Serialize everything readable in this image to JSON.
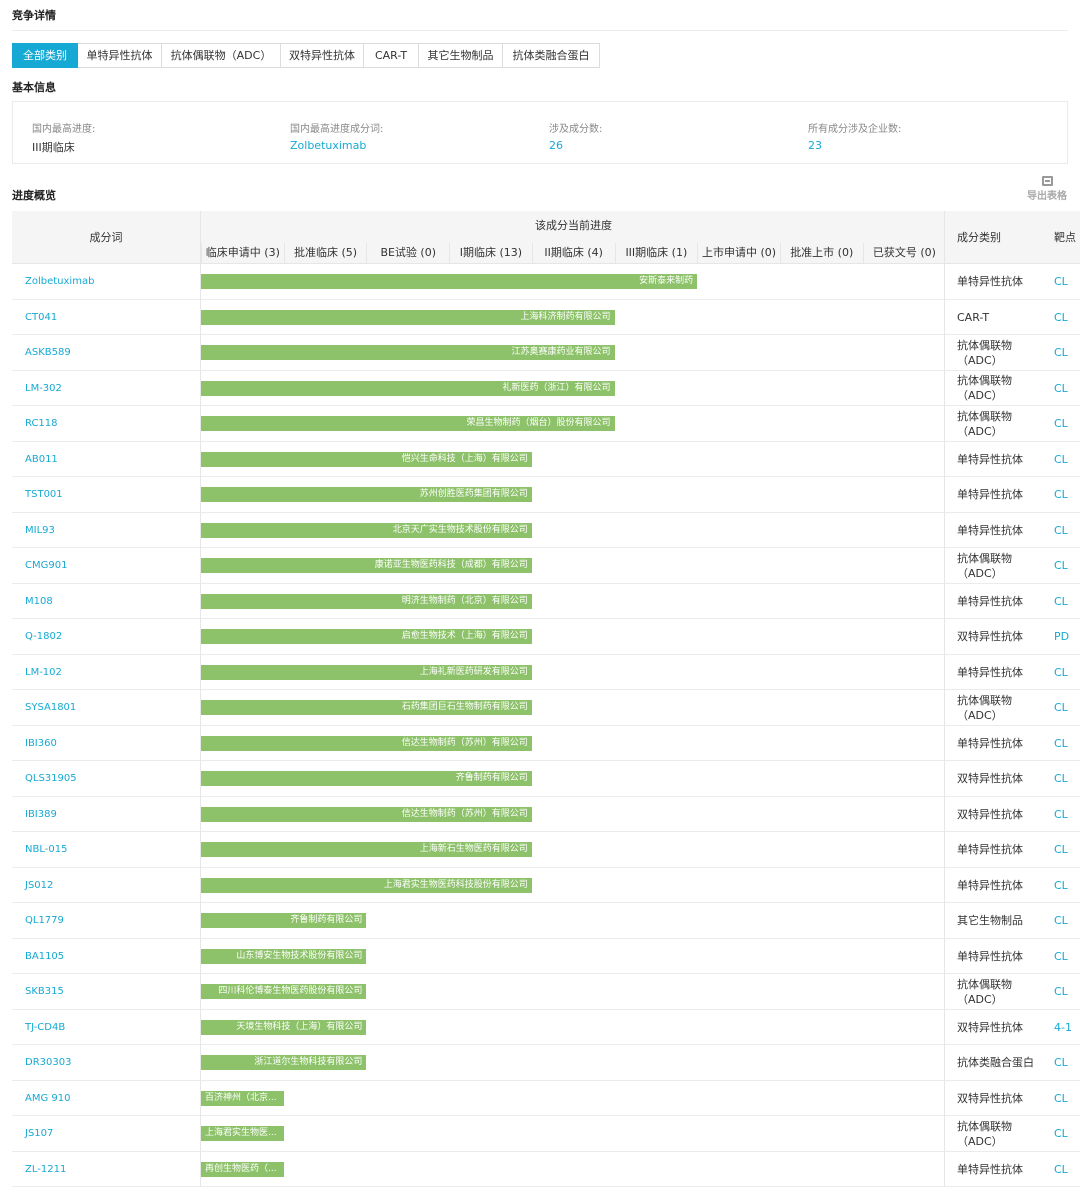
{
  "page_title": "竞争详情",
  "tabs": [
    "全部类别",
    "单特异性抗体",
    "抗体偶联物（ADC）",
    "双特异性抗体",
    "CAR-T",
    "其它生物制品",
    "抗体类融合蛋白"
  ],
  "basic_info": {
    "title": "基本信息",
    "items": [
      {
        "label": "国内最高进度:",
        "value": "III期临床"
      },
      {
        "label": "国内最高进度成分词:",
        "value": "Zolbetuximab"
      },
      {
        "label": "涉及成分数:",
        "value": "26"
      },
      {
        "label": "所有成分涉及企业数:",
        "value": "23"
      }
    ]
  },
  "progress": {
    "title": "进度概览",
    "export_label": "导出表格",
    "col_name": "成分词",
    "col_progress": "该成分当前进度",
    "col_category": "成分类别",
    "col_target": "靶点",
    "stages": [
      "临床申请中 (3)",
      "批准临床 (5)",
      "BE试验 (0)",
      "I期临床 (13)",
      "II期临床 (4)",
      "III期临床 (1)",
      "上市申请中 (0)",
      "批准上市 (0)",
      "已获文号 (0)"
    ]
  },
  "rows": [
    {
      "name": "Zolbetuximab",
      "stage": 6,
      "company": "安斯泰来制药",
      "category": "单特异性抗体",
      "target": "CL"
    },
    {
      "name": "CT041",
      "stage": 5,
      "company": "上海科济制药有限公司",
      "category": "CAR-T",
      "target": "CL"
    },
    {
      "name": "ASKB589",
      "stage": 5,
      "company": "江苏奥赛康药业有限公司",
      "category": "抗体偶联物（ADC）",
      "target": "CL"
    },
    {
      "name": "LM-302",
      "stage": 5,
      "company": "礼新医药（浙江）有限公司",
      "category": "抗体偶联物（ADC）",
      "target": "CL"
    },
    {
      "name": "RC118",
      "stage": 5,
      "company": "荣昌生物制药（烟台）股份有限公司",
      "category": "抗体偶联物（ADC）",
      "target": "CL"
    },
    {
      "name": "AB011",
      "stage": 4,
      "company": "恺兴生命科技（上海）有限公司",
      "category": "单特异性抗体",
      "target": "CL"
    },
    {
      "name": "TST001",
      "stage": 4,
      "company": "苏州创胜医药集团有限公司",
      "category": "单特异性抗体",
      "target": "CL"
    },
    {
      "name": "MIL93",
      "stage": 4,
      "company": "北京天广实生物技术股份有限公司",
      "category": "单特异性抗体",
      "target": "CL"
    },
    {
      "name": "CMG901",
      "stage": 4,
      "company": "康诺亚生物医药科技（成都）有限公司",
      "category": "抗体偶联物（ADC）",
      "target": "CL"
    },
    {
      "name": "M108",
      "stage": 4,
      "company": "明济生物制药（北京）有限公司",
      "category": "单特异性抗体",
      "target": "CL"
    },
    {
      "name": "Q-1802",
      "stage": 4,
      "company": "启愈生物技术（上海）有限公司",
      "category": "双特异性抗体",
      "target": "PD"
    },
    {
      "name": "LM-102",
      "stage": 4,
      "company": "上海礼新医药研发有限公司",
      "category": "单特异性抗体",
      "target": "CL"
    },
    {
      "name": "SYSA1801",
      "stage": 4,
      "company": "石药集团巨石生物制药有限公司",
      "category": "抗体偶联物（ADC）",
      "target": "CL"
    },
    {
      "name": "IBI360",
      "stage": 4,
      "company": "信达生物制药（苏州）有限公司",
      "category": "单特异性抗体",
      "target": "CL"
    },
    {
      "name": "QLS31905",
      "stage": 4,
      "company": "齐鲁制药有限公司",
      "category": "双特异性抗体",
      "target": "CL"
    },
    {
      "name": "IBI389",
      "stage": 4,
      "company": "信达生物制药（苏州）有限公司",
      "category": "双特异性抗体",
      "target": "CL"
    },
    {
      "name": "NBL-015",
      "stage": 4,
      "company": "上海新石生物医药有限公司",
      "category": "单特异性抗体",
      "target": "CL"
    },
    {
      "name": "JS012",
      "stage": 4,
      "company": "上海君实生物医药科技股份有限公司",
      "category": "单特异性抗体",
      "target": "CL"
    },
    {
      "name": "QL1779",
      "stage": 2,
      "company": "齐鲁制药有限公司",
      "category": "其它生物制品",
      "target": "CL"
    },
    {
      "name": "BA1105",
      "stage": 2,
      "company": "山东博安生物技术股份有限公司",
      "category": "单特异性抗体",
      "target": "CL"
    },
    {
      "name": "SKB315",
      "stage": 2,
      "company": "四川科伦博泰生物医药股份有限公司",
      "category": "抗体偶联物（ADC）",
      "target": "CL"
    },
    {
      "name": "TJ-CD4B",
      "stage": 2,
      "company": "天境生物科技（上海）有限公司",
      "category": "双特异性抗体",
      "target": "4-1"
    },
    {
      "name": "DR30303",
      "stage": 2,
      "company": "浙江道尔生物科技有限公司",
      "category": "抗体类融合蛋白",
      "target": "CL"
    },
    {
      "name": "AMG 910",
      "stage": 1,
      "company": "百济神州（北京...",
      "category": "双特异性抗体",
      "target": "CL"
    },
    {
      "name": "JS107",
      "stage": 1,
      "company": "上海君实生物医...",
      "category": "抗体偶联物（ADC）",
      "target": "CL"
    },
    {
      "name": "ZL-1211",
      "stage": 1,
      "company": "再创生物医药（...",
      "category": "单特异性抗体",
      "target": "CL"
    }
  ]
}
